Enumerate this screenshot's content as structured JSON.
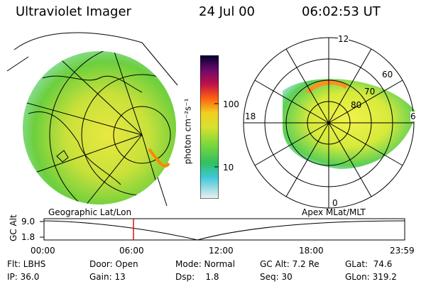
{
  "header": {
    "instrument": "Ultraviolet Imager",
    "date": "24 Jul 00",
    "time": "06:02:53 UT"
  },
  "colorbar": {
    "unit_label": "photon cm⁻²s⁻¹",
    "ticks": [
      "100",
      "10"
    ]
  },
  "polar_plot": {
    "clock_labels": [
      "12",
      "18",
      "6",
      "0"
    ],
    "lat_labels": [
      "60",
      "70",
      "80"
    ]
  },
  "timeline": {
    "left_label": "Geographic Lat/Lon",
    "right_label": "Apex MLat/MLT",
    "axis_label": "GC Alt",
    "y_ticks": [
      "9.0",
      "1.8"
    ],
    "x_ticks": [
      "00:00",
      "06:00",
      "12:00",
      "18:00",
      "23:59"
    ]
  },
  "info": {
    "row1": [
      {
        "text": "Flt: LBHS"
      },
      {
        "text": "Door: Open"
      },
      {
        "text": "Mode: Normal"
      },
      {
        "text": "GC Alt: 7.2 Re"
      },
      {
        "text": "GLat:  74.6"
      }
    ],
    "row2": [
      {
        "text": "IP: 36.0"
      },
      {
        "text": "Gain: 13"
      },
      {
        "text": "Dsp:    1.8"
      },
      {
        "text": "Seq: 30"
      },
      {
        "text": "GLon: 319.2"
      }
    ]
  },
  "colors": {
    "accent_red": "#e01010",
    "aurora_green": "#6ccf3e",
    "aurora_yellow": "#e8e840"
  }
}
